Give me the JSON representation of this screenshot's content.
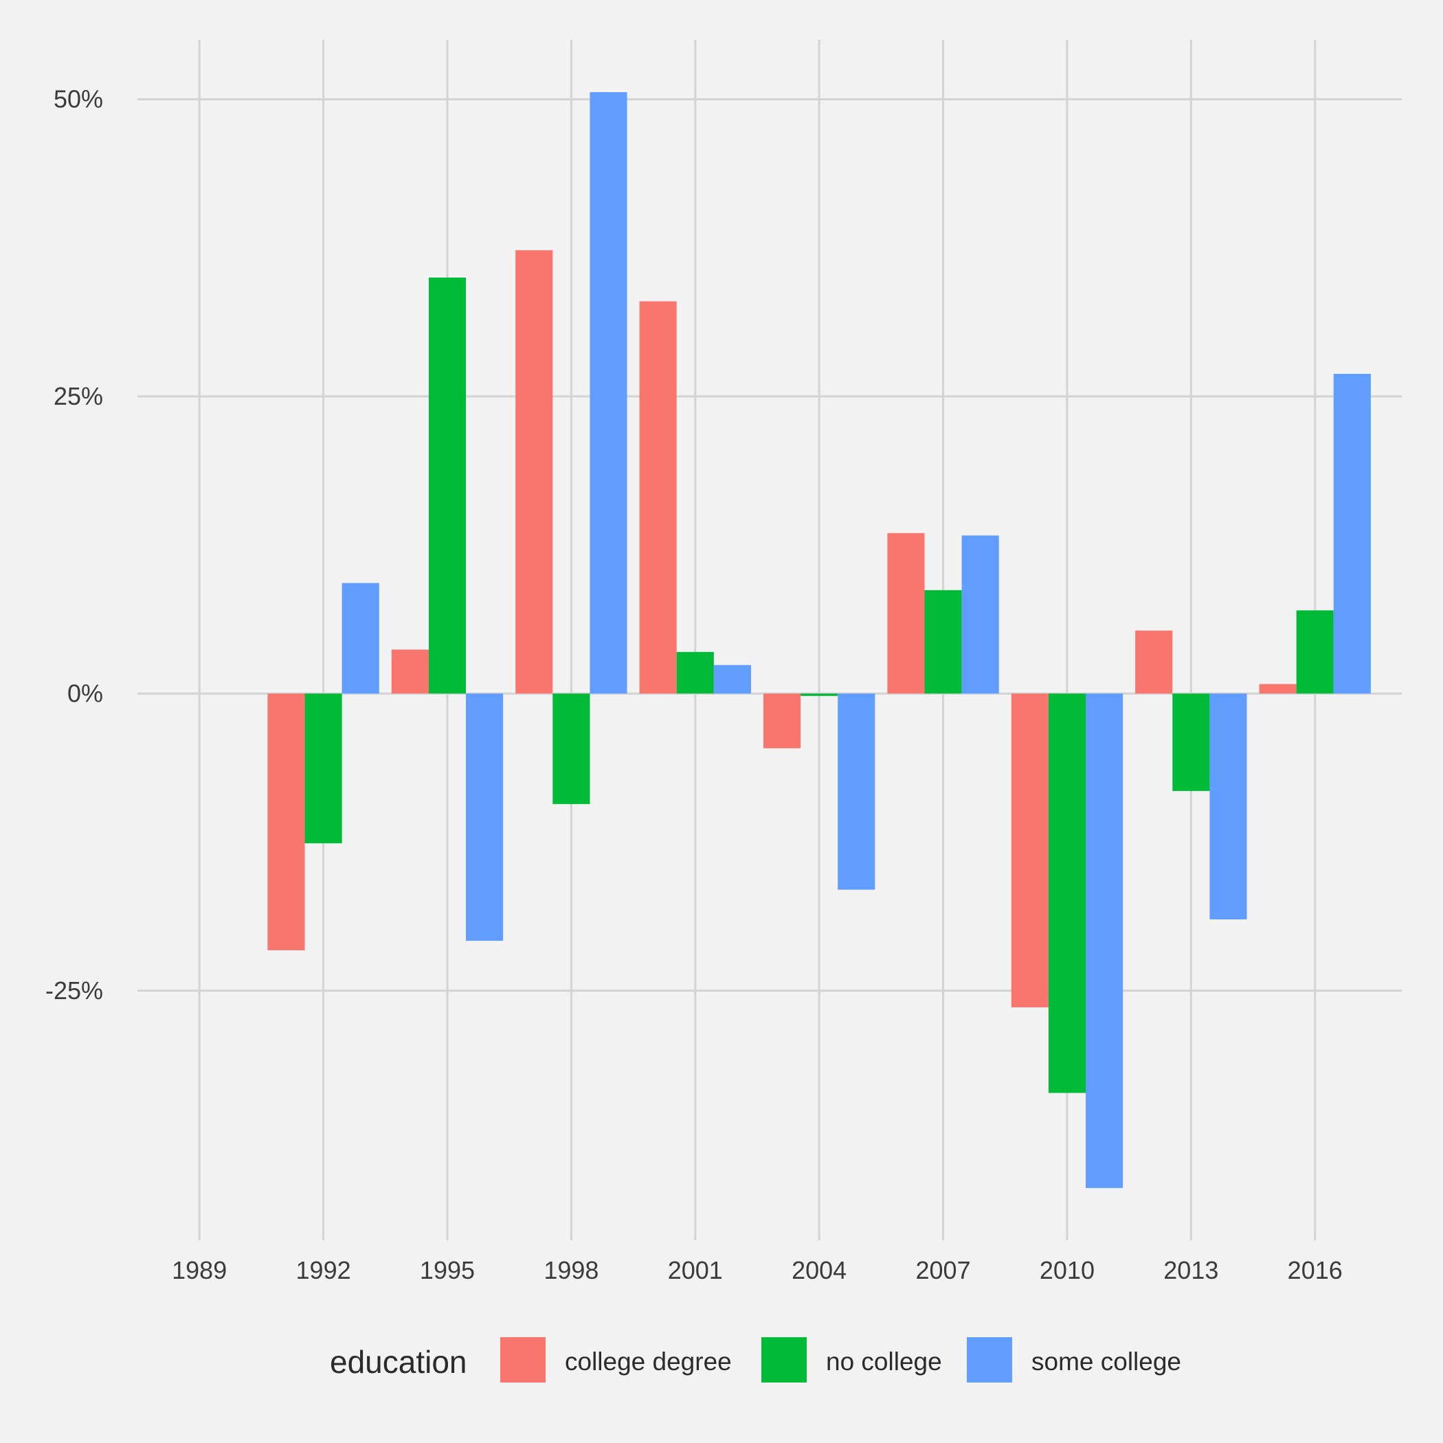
{
  "chart_data": {
    "type": "bar",
    "title": "",
    "xlabel": "",
    "ylabel": "",
    "x_ticks": [
      "1989",
      "1992",
      "1995",
      "1998",
      "2001",
      "2004",
      "2007",
      "2010",
      "2013",
      "2016"
    ],
    "y_ticks": [
      {
        "value": 50,
        "label": "50%"
      },
      {
        "value": 25,
        "label": "25%"
      },
      {
        "value": 0,
        "label": "0%"
      },
      {
        "value": -25,
        "label": "-25%"
      }
    ],
    "xlim": [
      1987.5,
      2018.1
    ],
    "ylim": [
      -46,
      55
    ],
    "y_unit": "percent",
    "grid": true,
    "legend": {
      "title": "education",
      "placement": "bottom"
    },
    "categories": [
      1992,
      1995,
      1998,
      2001,
      2004,
      2007,
      2010,
      2013,
      2016
    ],
    "series": [
      {
        "name": "college degree",
        "color": "#f8766d",
        "values": [
          -21.6,
          3.7,
          37.3,
          33.0,
          -4.6,
          13.5,
          -26.4,
          5.3,
          0.8
        ]
      },
      {
        "name": "no college",
        "color": "#00ba38",
        "values": [
          -12.6,
          35.0,
          -9.3,
          3.5,
          -0.2,
          8.7,
          -33.6,
          -8.2,
          7.0
        ]
      },
      {
        "name": "some college",
        "color": "#619cff",
        "values": [
          9.3,
          -20.8,
          50.6,
          2.4,
          -16.5,
          13.3,
          -41.6,
          -19.0,
          26.9
        ]
      }
    ]
  }
}
